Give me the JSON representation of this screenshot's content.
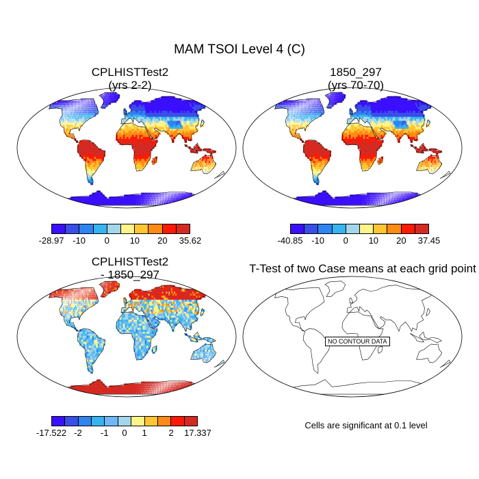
{
  "title": "MAM TSOI Level 4 (C)",
  "panels": [
    {
      "id": "case",
      "title_line1": "CPLHISTTest2",
      "title_line2": "(yrs 2-2)",
      "type": "absolute",
      "colorbar": {
        "colors": [
          "#3b0fff",
          "#3a4ee8",
          "#2f84f0",
          "#37b4f0",
          "#a3d6ea",
          "#fff48a",
          "#ffc532",
          "#ff8a14",
          "#ff1a06",
          "#d42a22"
        ],
        "labels": [
          "-28.97",
          "-10",
          "0",
          "10",
          "20",
          "35.62"
        ],
        "label_positions": [
          0,
          2,
          4,
          6,
          8,
          10
        ]
      }
    },
    {
      "id": "control",
      "title_line1": "1850_297",
      "title_line2": "(yrs 70-70)",
      "type": "absolute",
      "colorbar": {
        "colors": [
          "#3b0fff",
          "#3a4ee8",
          "#2f84f0",
          "#37b4f0",
          "#a3d6ea",
          "#fff48a",
          "#ffc532",
          "#ff8a14",
          "#ff1a06",
          "#d42a22"
        ],
        "labels": [
          "-40.85",
          "-10",
          "0",
          "10",
          "20",
          "37.45"
        ],
        "label_positions": [
          0,
          2,
          4,
          6,
          8,
          10
        ]
      }
    },
    {
      "id": "difference",
      "title_line1": "CPLHISTTest2",
      "title_line2": "- 1850_297",
      "type": "difference",
      "colorbar": {
        "colors": [
          "#3b0fff",
          "#3a4ee8",
          "#2f84f0",
          "#37b4f0",
          "#6eb8f5",
          "#a3d6ea",
          "#fff48a",
          "#ffc532",
          "#ff8a14",
          "#ff1a06",
          "#d42a22"
        ],
        "labels": [
          "-17.522",
          "-2",
          "-1",
          "0",
          "1",
          "2",
          "17.337"
        ],
        "label_positions": [
          0,
          2,
          4,
          5.5,
          7,
          9,
          11
        ]
      }
    },
    {
      "id": "ttest",
      "title_line1": "T-Test of two Case means at each grid point",
      "type": "outline",
      "no_data_label": "NO CONTOUR DATA",
      "significance_note": "Cells are significant at 0.1 level"
    }
  ]
}
